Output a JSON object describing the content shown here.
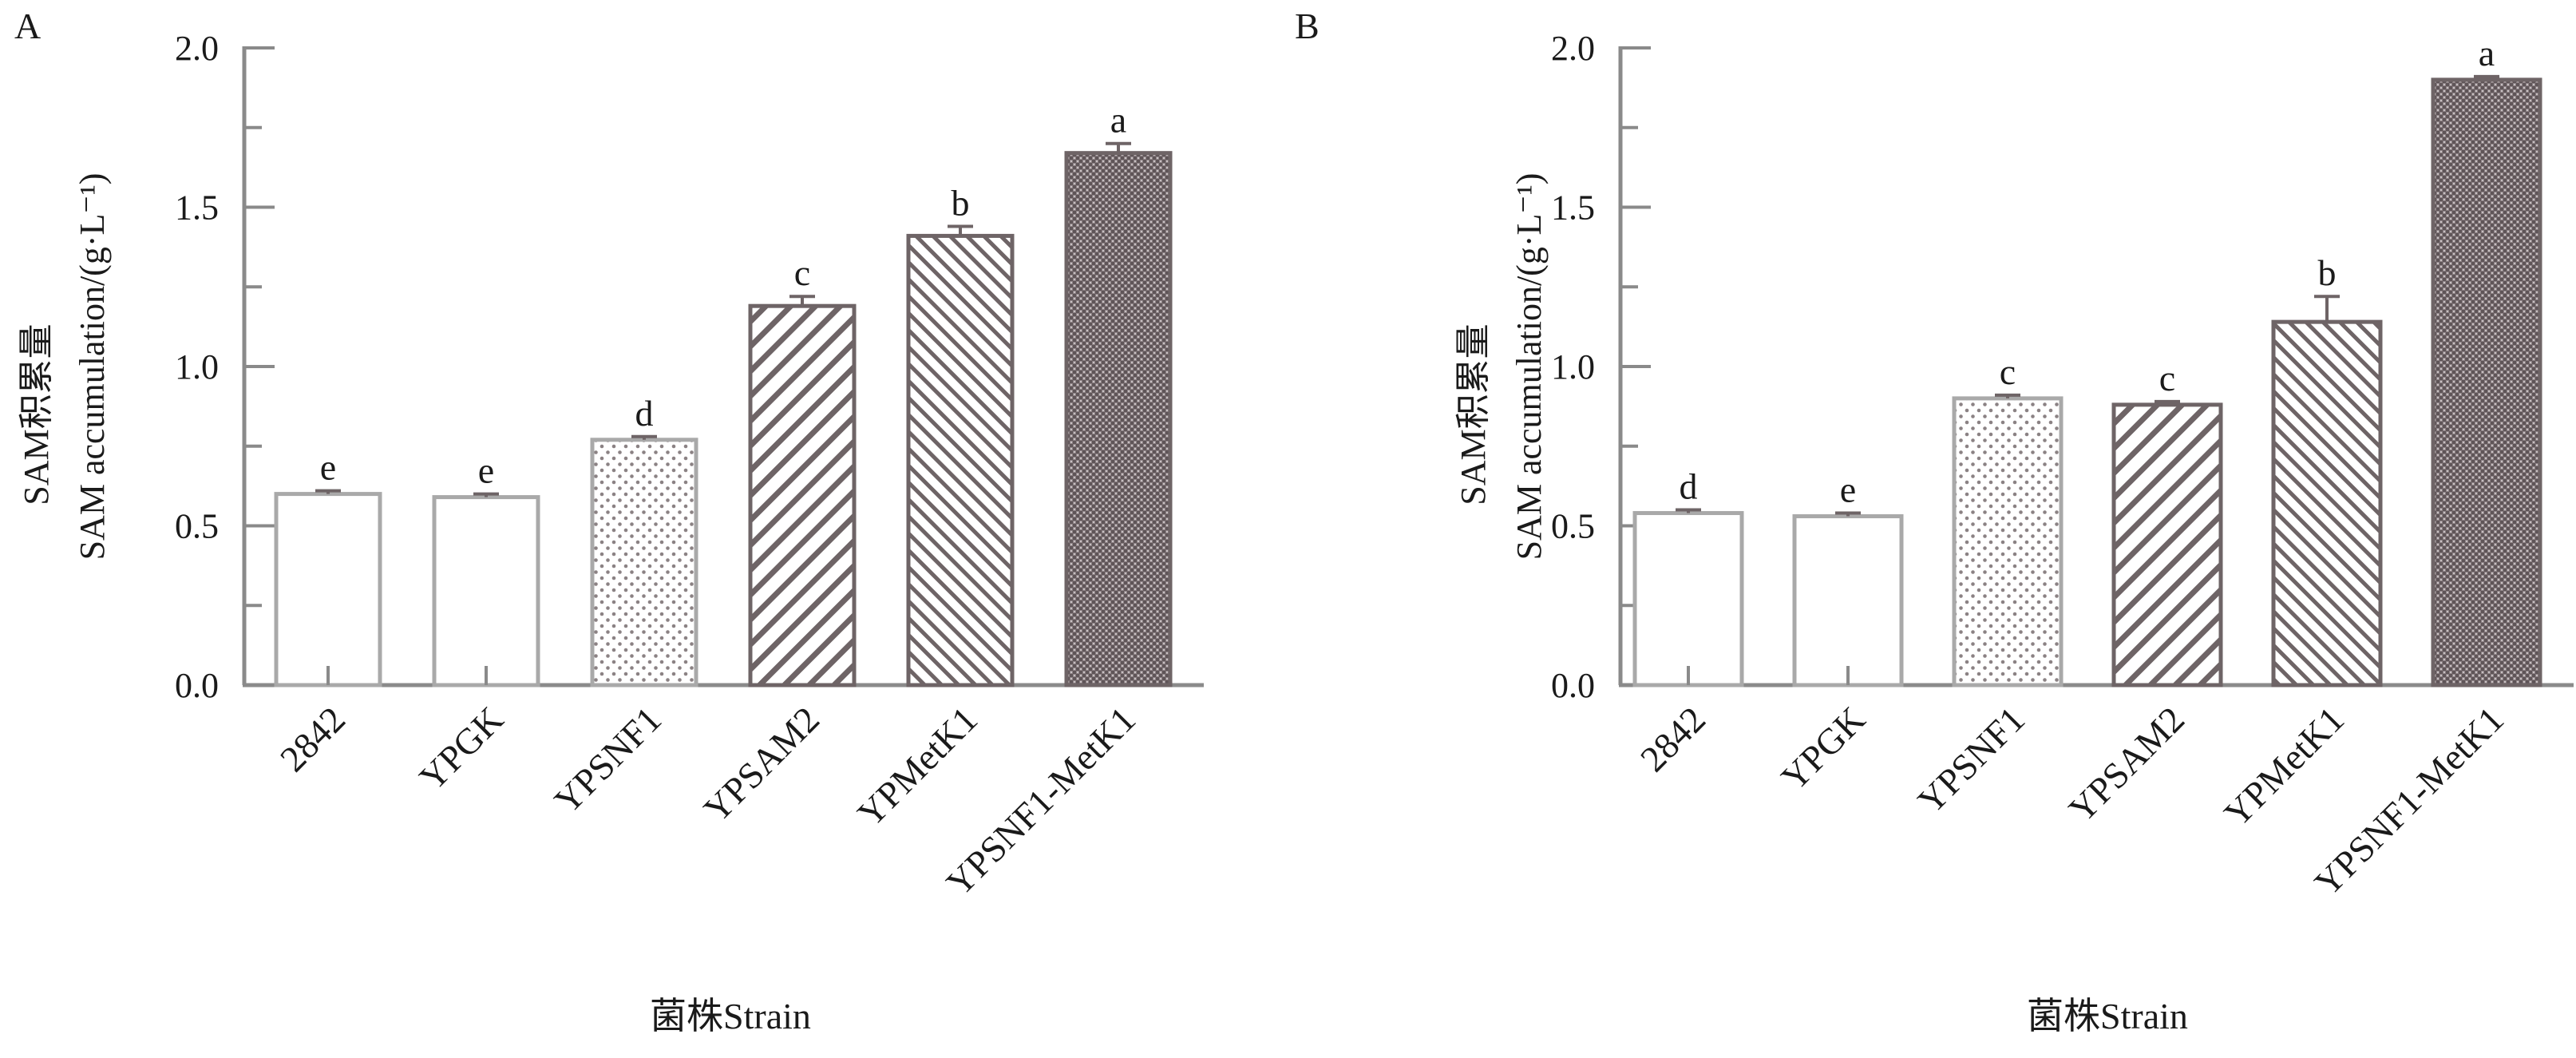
{
  "chart_data": [
    {
      "type": "bar",
      "panel_label": "A",
      "categories": [
        "2842",
        "YPGK",
        "YPSNF1",
        "YPSAM2",
        "YPMetK1",
        "YPSNF1-MetK1"
      ],
      "values": [
        0.6,
        0.59,
        0.77,
        1.19,
        1.41,
        1.67
      ],
      "errors": [
        0.01,
        0.01,
        0.01,
        0.03,
        0.03,
        0.03
      ],
      "significance": [
        "e",
        "e",
        "d",
        "c",
        "b",
        "a"
      ],
      "patterns": [
        "none",
        "none",
        "dots",
        "diag-wide",
        "diag-fine",
        "cross"
      ],
      "ylabel_cn": "SAM积累量",
      "ylabel_en": "SAM accumulation/(g·L⁻¹)",
      "xlabel": "菌株Strain",
      "ylim": [
        0,
        2.0
      ],
      "yticks": [
        "0.0",
        "0.5",
        "1.0",
        "1.5",
        "2.0"
      ]
    },
    {
      "type": "bar",
      "panel_label": "B",
      "categories": [
        "2842",
        "YPGK",
        "YPSNF1",
        "YPSAM2",
        "YPMetK1",
        "YPSNF1-MetK1"
      ],
      "values": [
        0.54,
        0.53,
        0.9,
        0.88,
        1.14,
        1.9
      ],
      "errors": [
        0.01,
        0.01,
        0.01,
        0.01,
        0.08,
        0.01
      ],
      "significance": [
        "d",
        "e",
        "c",
        "c",
        "b",
        "a"
      ],
      "patterns": [
        "none",
        "none",
        "dots",
        "diag-wide",
        "diag-fine",
        "cross"
      ],
      "ylabel_cn": "SAM积累量",
      "ylabel_en": "SAM accumulation/(g·L⁻¹)",
      "xlabel": "菌株Strain",
      "ylim": [
        0,
        2.0
      ],
      "yticks": [
        "0.0",
        "0.5",
        "1.0",
        "1.5",
        "2.0"
      ]
    }
  ],
  "colors": {
    "axis": "#8a8a8a",
    "bar_outline_light": "#a9a9a9",
    "bar_outline_dark": "#6e6466",
    "pattern_ink": "#6e6466"
  }
}
